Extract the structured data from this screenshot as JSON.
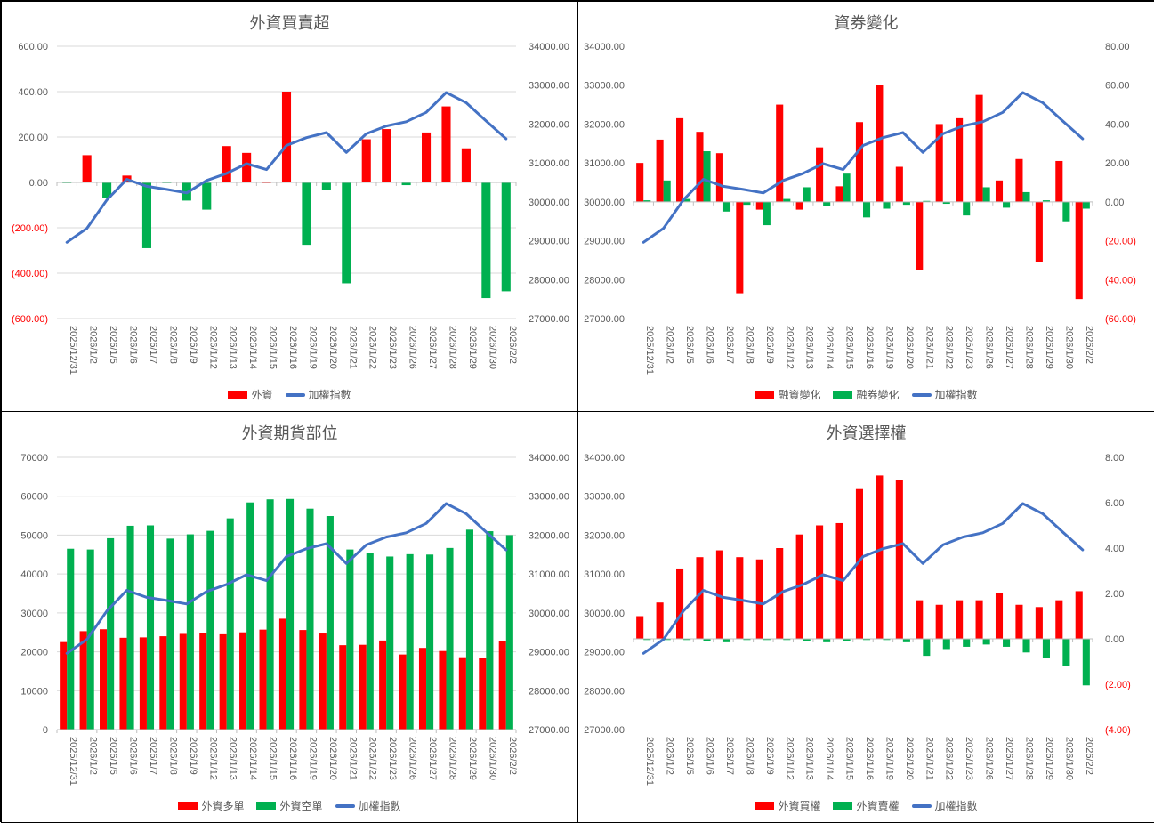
{
  "colors": {
    "red": "#ff0000",
    "green": "#00b050",
    "blue": "#4472c4",
    "axis_text": "#595959",
    "neg_text": "#ff0000",
    "grid": "#d9d9d9"
  },
  "chart_data": [
    {
      "type": "bar+line",
      "title": "外資買賣超",
      "categories": [
        "2025/12/31",
        "2026/1/2",
        "2026/1/5",
        "2026/1/6",
        "2026/1/7",
        "2026/1/8",
        "2026/1/9",
        "2026/1/12",
        "2026/1/13",
        "2026/1/14",
        "2026/1/15",
        "2026/1/16",
        "2026/1/19",
        "2026/1/20",
        "2026/1/21",
        "2026/1/22",
        "2026/1/23",
        "2026/1/26",
        "2026/1/27",
        "2026/1/28",
        "2026/1/29",
        "2026/1/30",
        "2026/2/2"
      ],
      "series": [
        {
          "name": "外資",
          "kind": "bar",
          "axis": "left",
          "color": "#ff0000",
          "colorNeg": "#00b050",
          "values": [
            -2,
            120,
            -70,
            30,
            -290,
            -3,
            -80,
            -120,
            160,
            130,
            0,
            400,
            -275,
            -35,
            -445,
            190,
            235,
            -12,
            220,
            335,
            150,
            -510,
            -480
          ]
        },
        {
          "name": "加權指數",
          "kind": "line",
          "axis": "right",
          "color": "#4472c4",
          "values": [
            28960,
            29320,
            30050,
            30580,
            30400,
            30320,
            30230,
            30550,
            30730,
            30980,
            30830,
            31450,
            31650,
            31780,
            31270,
            31750,
            31950,
            32060,
            32300,
            32810,
            32550,
            32080,
            31620
          ]
        }
      ],
      "yLeft": {
        "min": -600,
        "max": 600,
        "step": 200,
        "ticks": [
          "(600.00)",
          "(400.00)",
          "(200.00)",
          "0.00",
          "200.00",
          "400.00",
          "600.00"
        ],
        "negRed": true
      },
      "yRight": {
        "min": 27000,
        "max": 34000,
        "step": 1000,
        "ticks": [
          "27000.00",
          "28000.00",
          "29000.00",
          "30000.00",
          "31000.00",
          "32000.00",
          "33000.00",
          "34000.00"
        ]
      },
      "gridlines": true,
      "legend": [
        "外資",
        "加權指數"
      ]
    },
    {
      "type": "bar+line",
      "title": "資券變化",
      "categories": [
        "2025/12/31",
        "2026/1/2",
        "2026/1/5",
        "2026/1/6",
        "2026/1/7",
        "2026/1/8",
        "2026/1/9",
        "2026/1/12",
        "2026/1/13",
        "2026/1/14",
        "2026/1/15",
        "2026/1/16",
        "2026/1/19",
        "2026/1/20",
        "2026/1/21",
        "2026/1/22",
        "2026/1/23",
        "2026/1/26",
        "2026/1/27",
        "2026/1/28",
        "2026/1/29",
        "2026/1/30",
        "2026/2/2"
      ],
      "series": [
        {
          "name": "融資變化",
          "kind": "bar",
          "axis": "right",
          "color": "#ff0000",
          "values": [
            20,
            32,
            43,
            36,
            25,
            -47,
            -4,
            50,
            -4,
            28,
            8,
            41,
            60,
            18,
            -35,
            40,
            43,
            55,
            11,
            22,
            -31,
            21,
            -50
          ]
        },
        {
          "name": "融券變化",
          "kind": "bar",
          "axis": "right",
          "color": "#00b050",
          "values": [
            0.8,
            11,
            1.5,
            26,
            -5,
            -1.5,
            -12,
            1.5,
            7.5,
            -2,
            14.5,
            -8,
            -3.5,
            -1.5,
            0.5,
            -1,
            -7,
            7.5,
            -3,
            5,
            0.8,
            -10,
            -3.5
          ]
        },
        {
          "name": "加權指數",
          "kind": "line",
          "axis": "left",
          "color": "#4472c4",
          "values": [
            28960,
            29320,
            30050,
            30580,
            30400,
            30320,
            30230,
            30550,
            30730,
            30980,
            30830,
            31450,
            31650,
            31780,
            31270,
            31750,
            31950,
            32060,
            32300,
            32810,
            32550,
            32080,
            31620
          ]
        }
      ],
      "yLeft": {
        "min": 27000,
        "max": 34000,
        "step": 1000,
        "ticks": [
          "27000.00",
          "28000.00",
          "29000.00",
          "30000.00",
          "31000.00",
          "32000.00",
          "33000.00",
          "34000.00"
        ]
      },
      "yRight": {
        "min": -60,
        "max": 80,
        "step": 20,
        "ticks": [
          "(60.00)",
          "(40.00)",
          "(20.00)",
          "0.00",
          "20.00",
          "40.00",
          "60.00",
          "80.00"
        ],
        "negRed": true
      },
      "gridlines": false,
      "legend": [
        "融資變化",
        "融券變化",
        "加權指數"
      ]
    },
    {
      "type": "bar+line",
      "title": "外資期貨部位",
      "categories": [
        "2025/12/31",
        "2026/1/2",
        "2026/1/5",
        "2026/1/6",
        "2026/1/7",
        "2026/1/8",
        "2026/1/9",
        "2026/1/12",
        "2026/1/13",
        "2026/1/14",
        "2026/1/15",
        "2026/1/16",
        "2026/1/19",
        "2026/1/20",
        "2026/1/21",
        "2026/1/22",
        "2026/1/23",
        "2026/1/26",
        "2026/1/27",
        "2026/1/28",
        "2026/1/29",
        "2026/1/30",
        "2026/2/2"
      ],
      "series": [
        {
          "name": "外資多單",
          "kind": "bar",
          "axis": "left",
          "color": "#ff0000",
          "values": [
            22500,
            25300,
            25800,
            23600,
            23700,
            24000,
            24600,
            24800,
            24500,
            25000,
            25700,
            28500,
            25600,
            24700,
            21700,
            21800,
            22900,
            19300,
            21000,
            20200,
            18600,
            18500,
            22700
          ]
        },
        {
          "name": "外資空單",
          "kind": "bar",
          "axis": "left",
          "color": "#00b050",
          "values": [
            46500,
            46300,
            49200,
            52400,
            52500,
            49100,
            50200,
            51100,
            54300,
            58400,
            59200,
            59300,
            56800,
            54900,
            46300,
            45500,
            44500,
            45100,
            45000,
            46700,
            51400,
            51000,
            50000
          ]
        },
        {
          "name": "加權指數",
          "kind": "line",
          "axis": "right",
          "color": "#4472c4",
          "values": [
            28960,
            29320,
            30050,
            30580,
            30400,
            30320,
            30230,
            30550,
            30730,
            30980,
            30830,
            31450,
            31650,
            31780,
            31270,
            31750,
            31950,
            32060,
            32300,
            32810,
            32550,
            32080,
            31620
          ]
        }
      ],
      "yLeft": {
        "min": 0,
        "max": 70000,
        "step": 10000,
        "ticks": [
          "0",
          "10000",
          "20000",
          "30000",
          "40000",
          "50000",
          "60000",
          "70000"
        ]
      },
      "yRight": {
        "min": 27000,
        "max": 34000,
        "step": 1000,
        "ticks": [
          "27000.00",
          "28000.00",
          "29000.00",
          "30000.00",
          "31000.00",
          "32000.00",
          "33000.00",
          "34000.00"
        ]
      },
      "gridlines": true,
      "legend": [
        "外資多單",
        "外資空單",
        "加權指數"
      ]
    },
    {
      "type": "bar+line",
      "title": "外資選擇權",
      "categories": [
        "2025/12/31",
        "2026/1/2",
        "2026/1/5",
        "2026/1/6",
        "2026/1/7",
        "2026/1/8",
        "2026/1/9",
        "2026/1/12",
        "2026/1/13",
        "2026/1/14",
        "2026/1/15",
        "2026/1/16",
        "2026/1/19",
        "2026/1/20",
        "2026/1/21",
        "2026/1/22",
        "2026/1/23",
        "2026/1/26",
        "2026/1/27",
        "2026/1/28",
        "2026/1/29",
        "2026/1/30",
        "2026/2/2"
      ],
      "series": [
        {
          "name": "外資買權",
          "kind": "bar",
          "axis": "right",
          "color": "#ff0000",
          "values": [
            1.0,
            1.6,
            3.1,
            3.6,
            3.9,
            3.6,
            3.5,
            4.0,
            4.6,
            5.0,
            5.1,
            6.6,
            7.2,
            7.0,
            1.7,
            1.5,
            1.7,
            1.7,
            2.0,
            1.5,
            1.4,
            1.7,
            2.1
          ]
        },
        {
          "name": "外資賣權",
          "kind": "bar",
          "axis": "right",
          "color": "#00b050",
          "values": [
            -0.05,
            -0.05,
            -0.05,
            -0.1,
            -0.15,
            -0.05,
            -0.05,
            -0.05,
            -0.1,
            -0.15,
            -0.1,
            -0.05,
            -0.05,
            -0.15,
            -0.75,
            -0.45,
            -0.35,
            -0.25,
            -0.35,
            -0.6,
            -0.85,
            -1.2,
            -2.05
          ]
        },
        {
          "name": "加權指數",
          "kind": "line",
          "axis": "left",
          "color": "#4472c4",
          "values": [
            28960,
            29320,
            30050,
            30580,
            30400,
            30320,
            30230,
            30550,
            30730,
            30980,
            30830,
            31450,
            31650,
            31780,
            31270,
            31750,
            31950,
            32060,
            32300,
            32810,
            32550,
            32080,
            31620
          ]
        }
      ],
      "yLeft": {
        "min": 27000,
        "max": 34000,
        "step": 1000,
        "ticks": [
          "27000.00",
          "28000.00",
          "29000.00",
          "30000.00",
          "31000.00",
          "32000.00",
          "33000.00",
          "34000.00"
        ]
      },
      "yRight": {
        "min": -4,
        "max": 8,
        "step": 2,
        "ticks": [
          "(4.00)",
          "(2.00)",
          "0.00",
          "2.00",
          "4.00",
          "6.00",
          "8.00"
        ],
        "negRed": true
      },
      "gridlines": false,
      "legend": [
        "外資買權",
        "外資賣權",
        "加權指數"
      ]
    }
  ]
}
